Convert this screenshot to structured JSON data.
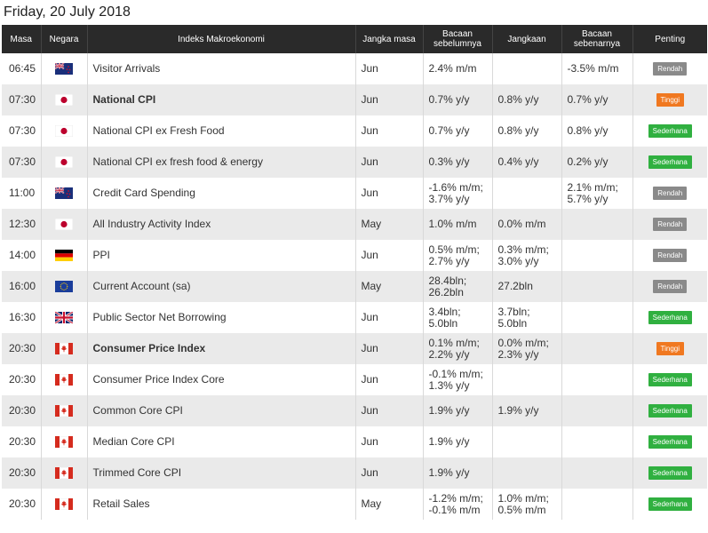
{
  "date": "Friday, 20 July 2018",
  "headers": {
    "time": "Masa",
    "country": "Negara",
    "indicator": "Indeks Makroekonomi",
    "period": "Jangka masa",
    "previous": "Bacaan sebelumnya",
    "forecast": "Jangkaan",
    "actual": "Bacaan sebenarnya",
    "importance": "Penting"
  },
  "colors": {
    "header_bg": "#2a2a2a",
    "row_alt": "#eaeaea",
    "low": "#8a8a8a",
    "high": "#f07820",
    "medium": "#30b040",
    "negative_actual": "#e02020"
  },
  "events": [
    {
      "time": "06:45",
      "flag": "nz-flag-icon",
      "name": "Visitor Arrivals",
      "bold": false,
      "period": "Jun",
      "previous": "2.4% m/m",
      "forecast": "",
      "actual": "-3.5% m/m",
      "actual_red": false,
      "importance": "Rendah",
      "level": "rendah"
    },
    {
      "time": "07:30",
      "flag": "jp-flag-icon",
      "name": "National CPI",
      "bold": true,
      "period": "Jun",
      "previous": "0.7% y/y",
      "forecast": "0.8% y/y",
      "actual": "0.7% y/y",
      "actual_red": true,
      "importance": "Tinggi",
      "level": "tinggi"
    },
    {
      "time": "07:30",
      "flag": "jp-flag-icon",
      "name": "National CPI ex Fresh Food",
      "bold": false,
      "period": "Jun",
      "previous": "0.7% y/y",
      "forecast": "0.8% y/y",
      "actual": "0.8% y/y",
      "actual_red": false,
      "importance": "Sederhana",
      "level": "sederhana"
    },
    {
      "time": "07:30",
      "flag": "jp-flag-icon",
      "name": "National CPI ex fresh food & energy",
      "bold": false,
      "period": "Jun",
      "previous": "0.3% y/y",
      "forecast": "0.4% y/y",
      "actual": "0.2% y/y",
      "actual_red": true,
      "importance": "Sederhana",
      "level": "sederhana"
    },
    {
      "time": "11:00",
      "flag": "nz-flag-icon",
      "name": "Credit Card Spending",
      "bold": false,
      "period": "Jun",
      "previous": "-1.6% m/m; 3.7% y/y",
      "forecast": "",
      "actual": "2.1% m/m; 5.7% y/y",
      "actual_red": false,
      "importance": "Rendah",
      "level": "rendah"
    },
    {
      "time": "12:30",
      "flag": "jp-flag-icon",
      "name": "All Industry Activity Index",
      "bold": false,
      "period": "May",
      "previous": "1.0% m/m",
      "forecast": "0.0% m/m",
      "actual": "",
      "actual_red": false,
      "importance": "Rendah",
      "level": "rendah"
    },
    {
      "time": "14:00",
      "flag": "de-flag-icon",
      "name": "PPI",
      "bold": false,
      "period": "Jun",
      "previous": "0.5% m/m; 2.7% y/y",
      "forecast": "0.3% m/m; 3.0% y/y",
      "actual": "",
      "actual_red": false,
      "importance": "Rendah",
      "level": "rendah"
    },
    {
      "time": "16:00",
      "flag": "eu-flag-icon",
      "name": "Current Account (sa)",
      "bold": false,
      "period": "May",
      "previous": "28.4bln; 26.2bln",
      "forecast": "27.2bln",
      "actual": "",
      "actual_red": false,
      "importance": "Rendah",
      "level": "rendah"
    },
    {
      "time": "16:30",
      "flag": "uk-flag-icon",
      "name": "Public Sector Net Borrowing",
      "bold": false,
      "period": "Jun",
      "previous": "3.4bln; 5.0bln",
      "forecast": "3.7bln; 5.0bln",
      "actual": "",
      "actual_red": false,
      "importance": "Sederhana",
      "level": "sederhana"
    },
    {
      "time": "20:30",
      "flag": "ca-flag-icon",
      "name": "Consumer Price Index",
      "bold": true,
      "period": "Jun",
      "previous": "0.1% m/m; 2.2% y/y",
      "forecast": "0.0% m/m; 2.3% y/y",
      "actual": "",
      "actual_red": false,
      "importance": "Tinggi",
      "level": "tinggi"
    },
    {
      "time": "20:30",
      "flag": "ca-flag-icon",
      "name": "Consumer Price Index Core",
      "bold": false,
      "period": "Jun",
      "previous": "-0.1% m/m; 1.3% y/y",
      "forecast": "",
      "actual": "",
      "actual_red": false,
      "importance": "Sederhana",
      "level": "sederhana"
    },
    {
      "time": "20:30",
      "flag": "ca-flag-icon",
      "name": "Common Core CPI",
      "bold": false,
      "period": "Jun",
      "previous": "1.9% y/y",
      "forecast": "1.9% y/y",
      "actual": "",
      "actual_red": false,
      "importance": "Sederhana",
      "level": "sederhana"
    },
    {
      "time": "20:30",
      "flag": "ca-flag-icon",
      "name": "Median Core CPI",
      "bold": false,
      "period": "Jun",
      "previous": "1.9% y/y",
      "forecast": "",
      "actual": "",
      "actual_red": false,
      "importance": "Sederhana",
      "level": "sederhana"
    },
    {
      "time": "20:30",
      "flag": "ca-flag-icon",
      "name": "Trimmed Core CPI",
      "bold": false,
      "period": "Jun",
      "previous": "1.9% y/y",
      "forecast": "",
      "actual": "",
      "actual_red": false,
      "importance": "Sederhana",
      "level": "sederhana"
    },
    {
      "time": "20:30",
      "flag": "ca-flag-icon",
      "name": "Retail Sales",
      "bold": false,
      "period": "May",
      "previous": "-1.2% m/m; -0.1% m/m",
      "forecast": "1.0% m/m; 0.5% m/m",
      "actual": "",
      "actual_red": false,
      "importance": "Sederhana",
      "level": "sederhana"
    }
  ]
}
